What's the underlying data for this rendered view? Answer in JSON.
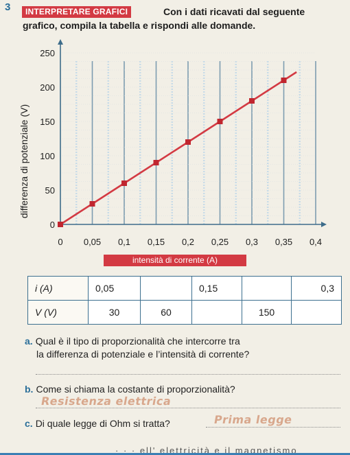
{
  "exercise": {
    "number": "3",
    "badge": "INTERPRETARE GRAFICI",
    "intro_line1": "Con i dati ricavati dal seguente",
    "intro_line2": "grafico, compila la tabella e rispondi alle domande."
  },
  "chart_data": {
    "type": "line",
    "xlabel": "intensità di corrente (A)",
    "ylabel": "differenza di potenziale (V)",
    "xlim": [
      0,
      0.4
    ],
    "ylim": [
      0,
      250
    ],
    "x_ticks": [
      "0",
      "0,05",
      "0,1",
      "0,15",
      "0,2",
      "0,25",
      "0,3",
      "0,35",
      "0,4"
    ],
    "y_ticks": [
      "0",
      "50",
      "100",
      "150",
      "200",
      "250"
    ],
    "x_tick_values": [
      0,
      0.05,
      0.1,
      0.15,
      0.2,
      0.25,
      0.3,
      0.35,
      0.4
    ],
    "y_tick_values": [
      0,
      50,
      100,
      150,
      200,
      250
    ],
    "series": [
      {
        "x": [
          0,
          0.05,
          0.1,
          0.15,
          0.2,
          0.25,
          0.3,
          0.35
        ],
        "y": [
          0,
          30,
          60,
          90,
          120,
          150,
          180,
          210
        ]
      }
    ],
    "colors": {
      "line": "#d33a43",
      "grid": "#c7dbe8",
      "axis": "#3d6c8a"
    },
    "grid": true
  },
  "table": {
    "rows": [
      [
        "i (A)",
        "0,05",
        "",
        "0,15",
        "",
        "0,3"
      ],
      [
        "V (V)",
        "30",
        "60",
        "",
        "150",
        ""
      ]
    ]
  },
  "questions": {
    "a_label": "a.",
    "a_line1": "Qual è il tipo di proporzionalità che intercorre tra",
    "a_line2": "la differenza di potenziale e l’intensità di corrente?",
    "b_label": "b.",
    "b_text": "Come si chiama la costante di proporzionalità?",
    "b_answer": "Resistenza elettrica",
    "c_label": "c.",
    "c_text": "Di quale legge di Ohm si tratta?",
    "c_answer": "Prima legge"
  },
  "footer": {
    "text": "· · · ell' elettricità e il magnetismo"
  }
}
